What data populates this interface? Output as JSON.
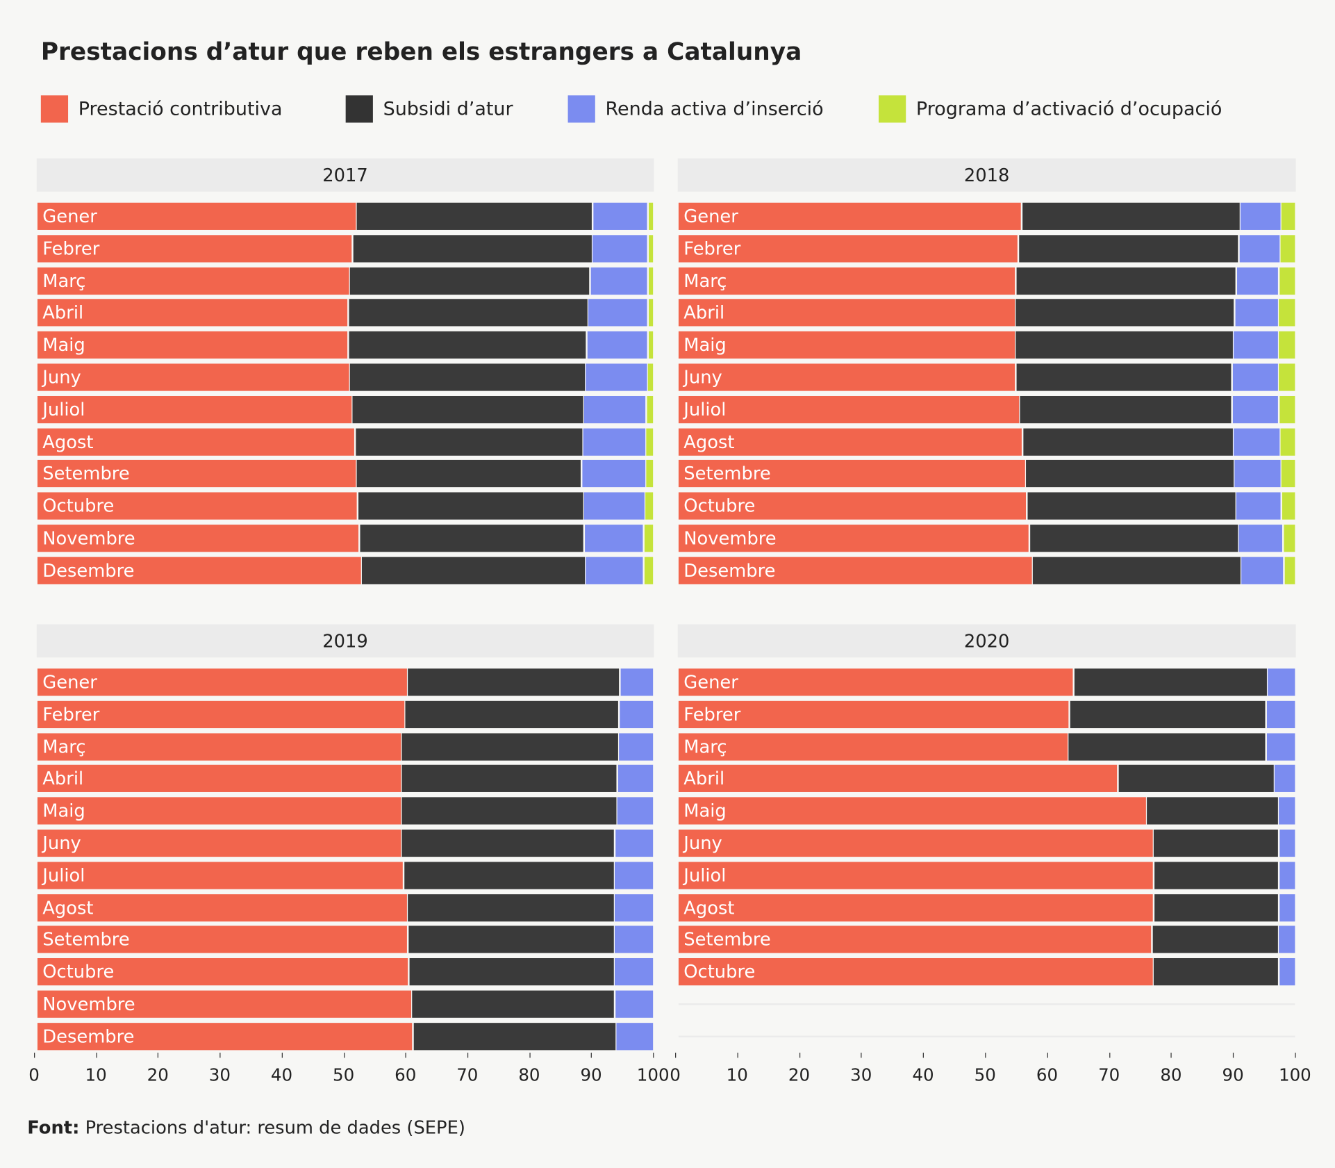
{
  "colors": {
    "Prestació contributiva": "#f2654d",
    "Subsidi d’atur": "#3a3a3a",
    "Renda activa d’inserció": "#7b8cf0",
    "Programa d’activació d’ocupació": "#c5e33b"
  },
  "chart_data": {
    "type": "bar",
    "orientation": "horizontal",
    "stacked": true,
    "title": "Prestacions d’atur que reben els estrangers a Catalunya",
    "legend": [
      "Prestació contributiva",
      "Subsidi d’atur",
      "Renda activa d’inserció",
      "Programa d’activació d’ocupació"
    ],
    "legend_placement": "top",
    "xlim": [
      0,
      100
    ],
    "xticks": [
      "0",
      "10",
      "20",
      "30",
      "40",
      "50",
      "60",
      "70",
      "80",
      "90",
      "100"
    ],
    "months": [
      "Gener",
      "Febrer",
      "Març",
      "Abril",
      "Maig",
      "Juny",
      "Juliol",
      "Agost",
      "Setembre",
      "Octubre",
      "Novembre",
      "Desembre"
    ],
    "panels": [
      {
        "year": "2017",
        "rows": [
          [
            51.9,
            38.4,
            9.0,
            0.7
          ],
          [
            51.3,
            38.9,
            9.1,
            0.7
          ],
          [
            50.8,
            39.1,
            9.4,
            0.7
          ],
          [
            50.6,
            38.9,
            9.8,
            0.7
          ],
          [
            50.6,
            38.7,
            10.0,
            0.7
          ],
          [
            50.8,
            38.3,
            10.1,
            0.8
          ],
          [
            51.2,
            37.6,
            10.2,
            1.0
          ],
          [
            51.7,
            37.0,
            10.2,
            1.1
          ],
          [
            51.9,
            36.6,
            10.4,
            1.1
          ],
          [
            52.1,
            36.7,
            10.0,
            1.2
          ],
          [
            52.4,
            36.5,
            9.7,
            1.4
          ],
          [
            52.7,
            36.4,
            9.5,
            1.4
          ]
        ]
      },
      {
        "year": "2018",
        "rows": [
          [
            55.8,
            35.4,
            6.6,
            2.2
          ],
          [
            55.2,
            35.8,
            6.7,
            2.3
          ],
          [
            54.8,
            35.8,
            6.9,
            2.5
          ],
          [
            54.7,
            35.6,
            7.1,
            2.6
          ],
          [
            54.7,
            35.4,
            7.3,
            2.6
          ],
          [
            54.8,
            35.1,
            7.5,
            2.6
          ],
          [
            55.4,
            34.5,
            7.6,
            2.5
          ],
          [
            55.9,
            34.2,
            7.6,
            2.3
          ],
          [
            56.4,
            33.8,
            7.6,
            2.2
          ],
          [
            56.6,
            33.9,
            7.4,
            2.1
          ],
          [
            57.0,
            33.9,
            7.3,
            1.8
          ],
          [
            57.5,
            33.8,
            7.0,
            1.7
          ]
        ]
      },
      {
        "year": "2019",
        "rows": [
          [
            60.2,
            34.5,
            5.3,
            0
          ],
          [
            59.8,
            34.8,
            5.4,
            0
          ],
          [
            59.2,
            35.3,
            5.5,
            0
          ],
          [
            59.2,
            35.1,
            5.7,
            0
          ],
          [
            59.2,
            35.0,
            5.8,
            0
          ],
          [
            59.2,
            34.7,
            6.1,
            0
          ],
          [
            59.6,
            34.2,
            6.2,
            0
          ],
          [
            60.2,
            33.6,
            6.2,
            0
          ],
          [
            60.3,
            33.5,
            6.2,
            0
          ],
          [
            60.4,
            33.4,
            6.2,
            0
          ],
          [
            60.9,
            33.0,
            6.1,
            0
          ],
          [
            61.1,
            33.0,
            5.9,
            0
          ]
        ]
      },
      {
        "year": "2020",
        "rows": [
          [
            64.2,
            31.4,
            4.4,
            0
          ],
          [
            63.5,
            31.9,
            4.6,
            0
          ],
          [
            63.3,
            32.1,
            4.6,
            0
          ],
          [
            71.4,
            25.3,
            3.3,
            0
          ],
          [
            76.0,
            21.4,
            2.6,
            0
          ],
          [
            77.1,
            20.4,
            2.5,
            0
          ],
          [
            77.2,
            20.3,
            2.5,
            0
          ],
          [
            77.2,
            20.3,
            2.5,
            0
          ],
          [
            76.9,
            20.5,
            2.6,
            0
          ],
          [
            77.1,
            20.4,
            2.5,
            0
          ]
        ]
      }
    ]
  },
  "source": {
    "label": "Font:",
    "text": "Prestacions d'atur: resum de dades (SEPE)"
  }
}
